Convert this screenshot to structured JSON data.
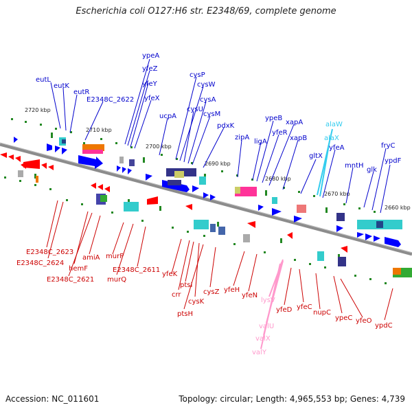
{
  "title": "Escherichia coli O127:H6 str. E2348/69, complete genome",
  "footer": {
    "accession": "Accession: NC_011601",
    "topology": "Topology: circular; Length: 4,965,553 bp; Genes: 4,739"
  },
  "colors": {
    "plus_gene": "#0000ff",
    "minus_gene": "#ff0000",
    "rna_gene": "#ff88cc",
    "trna_gene": "#33ccff",
    "backbone": "#8c8c8c",
    "tick": "#228822"
  },
  "kbp_labels": [
    "2720 kbp",
    "2710 kbp",
    "2700 kbp",
    "2690 kbp",
    "2680 kbp",
    "2670 kbp",
    "2660 kbp"
  ],
  "genes_top": [
    "eutL",
    "eutK",
    "eutR",
    "E2348C_2622",
    "ypeA",
    "yfeZ",
    "yfeY",
    "yfeX",
    "ucpA",
    "cysP",
    "cysW",
    "cysU",
    "cysA",
    "cysM",
    "pdxK",
    "zipA",
    "ligA",
    "ypeB",
    "yfeR",
    "xapA",
    "xapB",
    "gltX",
    "alaW",
    "alaX",
    "yfeA",
    "mntH",
    "glk",
    "fryC",
    "ypdF"
  ],
  "genes_bottom": [
    "E2348C_2623",
    "E2348C_2624",
    "hemF",
    "E2348C_2621",
    "amiA",
    "murP",
    "murQ",
    "E2348C_2611",
    "yfeK",
    "crr",
    "ptsI",
    "cysK",
    "ptsH",
    "cysZ",
    "yfeH",
    "yfeN",
    "lysV",
    "valU",
    "valX",
    "valY",
    "yfeD",
    "yfeC",
    "nupC",
    "ypeC",
    "yfeO",
    "ypdC"
  ]
}
